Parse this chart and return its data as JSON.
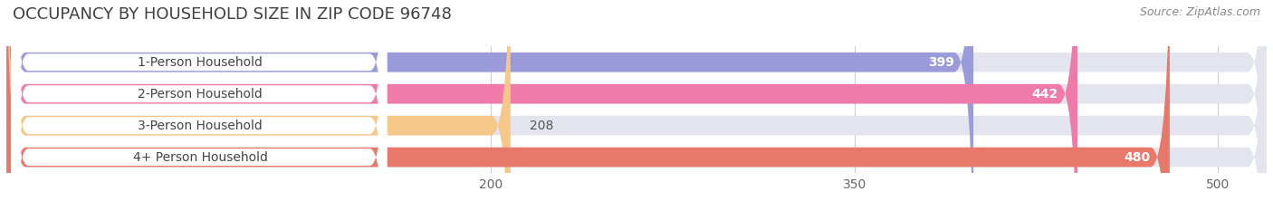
{
  "title": "OCCUPANCY BY HOUSEHOLD SIZE IN ZIP CODE 96748",
  "source": "Source: ZipAtlas.com",
  "categories": [
    "1-Person Household",
    "2-Person Household",
    "3-Person Household",
    "4+ Person Household"
  ],
  "values": [
    399,
    442,
    208,
    480
  ],
  "bar_colors": [
    "#9b9bdb",
    "#f07aaa",
    "#f5c88a",
    "#e8796a"
  ],
  "bar_bg_color": "#e4e4ee",
  "xmax": 520,
  "xticks": [
    200,
    350,
    500
  ],
  "title_fontsize": 13,
  "source_fontsize": 9,
  "label_fontsize": 10,
  "value_fontsize": 10,
  "background_color": "#ffffff"
}
